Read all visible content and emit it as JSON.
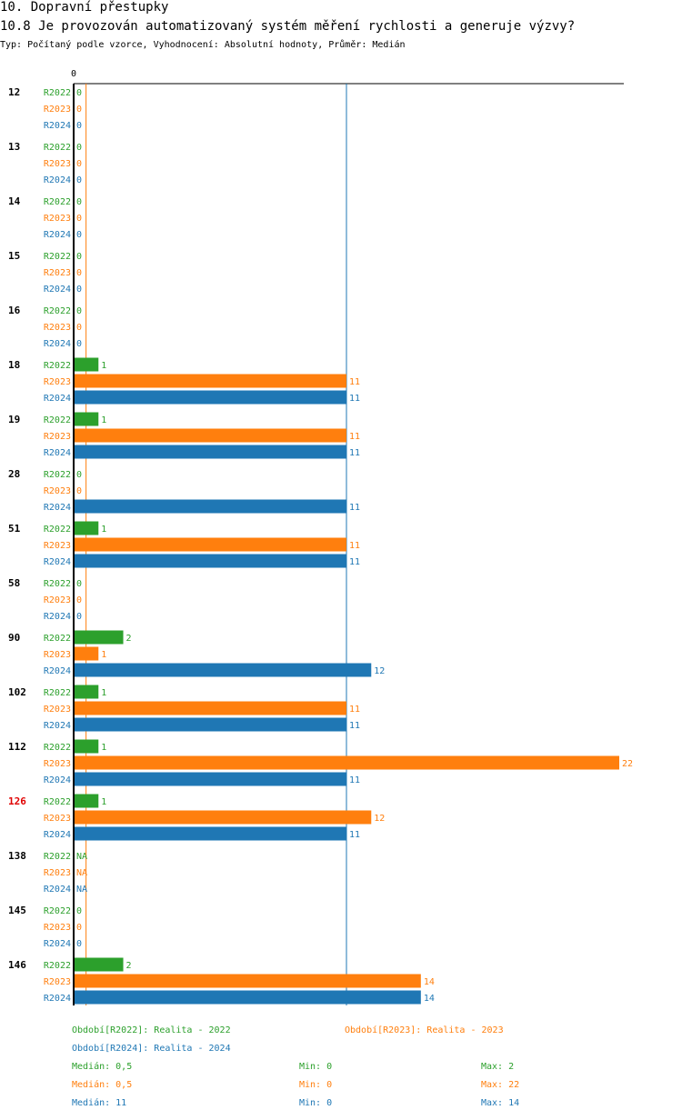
{
  "page": {
    "title": "10. Dopravní přestupky",
    "subtitle": "10.8 Je provozován automatizovaný systém měření rychlosti a generuje výzvy?",
    "meta": "Typ: Počítaný podle vzorce, Vyhodnocení: Absolutní hodnoty, Průměr: Medián"
  },
  "colors": {
    "R2022": "#2ca02c",
    "R2023": "#ff7f0e",
    "R2024": "#1f77b4",
    "highlight": "#e00000",
    "axis": "#000000"
  },
  "chart_data": {
    "type": "bar",
    "orientation": "horizontal",
    "x_min": 0,
    "x_max": 22,
    "axis_zero_label": "0",
    "reference_lines": [
      {
        "series": "R2023",
        "value": 0.5
      },
      {
        "series": "R2024",
        "value": 11
      }
    ],
    "series": [
      {
        "key": "R2022",
        "name": "R2022"
      },
      {
        "key": "R2023",
        "name": "R2023"
      },
      {
        "key": "R2024",
        "name": "R2024"
      }
    ],
    "categories": [
      {
        "label": "12",
        "highlight": false,
        "values": {
          "R2022": "0",
          "R2023": "0",
          "R2024": "0"
        }
      },
      {
        "label": "13",
        "highlight": false,
        "values": {
          "R2022": "0",
          "R2023": "0",
          "R2024": "0"
        }
      },
      {
        "label": "14",
        "highlight": false,
        "values": {
          "R2022": "0",
          "R2023": "0",
          "R2024": "0"
        }
      },
      {
        "label": "15",
        "highlight": false,
        "values": {
          "R2022": "0",
          "R2023": "0",
          "R2024": "0"
        }
      },
      {
        "label": "16",
        "highlight": false,
        "values": {
          "R2022": "0",
          "R2023": "0",
          "R2024": "0"
        }
      },
      {
        "label": "18",
        "highlight": false,
        "values": {
          "R2022": "1",
          "R2023": "11",
          "R2024": "11"
        }
      },
      {
        "label": "19",
        "highlight": false,
        "values": {
          "R2022": "1",
          "R2023": "11",
          "R2024": "11"
        }
      },
      {
        "label": "28",
        "highlight": false,
        "values": {
          "R2022": "0",
          "R2023": "0",
          "R2024": "11"
        }
      },
      {
        "label": "51",
        "highlight": false,
        "values": {
          "R2022": "1",
          "R2023": "11",
          "R2024": "11"
        }
      },
      {
        "label": "58",
        "highlight": false,
        "values": {
          "R2022": "0",
          "R2023": "0",
          "R2024": "0"
        }
      },
      {
        "label": "90",
        "highlight": false,
        "values": {
          "R2022": "2",
          "R2023": "1",
          "R2024": "12"
        }
      },
      {
        "label": "102",
        "highlight": false,
        "values": {
          "R2022": "1",
          "R2023": "11",
          "R2024": "11"
        }
      },
      {
        "label": "112",
        "highlight": false,
        "values": {
          "R2022": "1",
          "R2023": "22",
          "R2024": "11"
        }
      },
      {
        "label": "126",
        "highlight": true,
        "values": {
          "R2022": "1",
          "R2023": "12",
          "R2024": "11"
        }
      },
      {
        "label": "138",
        "highlight": false,
        "values": {
          "R2022": "NA",
          "R2023": "NA",
          "R2024": "NA"
        }
      },
      {
        "label": "145",
        "highlight": false,
        "values": {
          "R2022": "0",
          "R2023": "0",
          "R2024": "0"
        }
      },
      {
        "label": "146",
        "highlight": false,
        "values": {
          "R2022": "2",
          "R2023": "14",
          "R2024": "14"
        }
      }
    ]
  },
  "legend": {
    "r2022": "Období[R2022]: Realita - 2022",
    "r2023": "Období[R2023]: Realita - 2023",
    "r2024": "Období[R2024]: Realita - 2024"
  },
  "stats": {
    "r2022": {
      "median": "Medián: 0,5",
      "min": "Min: 0",
      "max": "Max: 2"
    },
    "r2023": {
      "median": "Medián: 0,5",
      "min": "Min: 0",
      "max": "Max: 22"
    },
    "r2024": {
      "median": "Medián: 11",
      "min": "Min: 0",
      "max": "Max: 14"
    }
  }
}
